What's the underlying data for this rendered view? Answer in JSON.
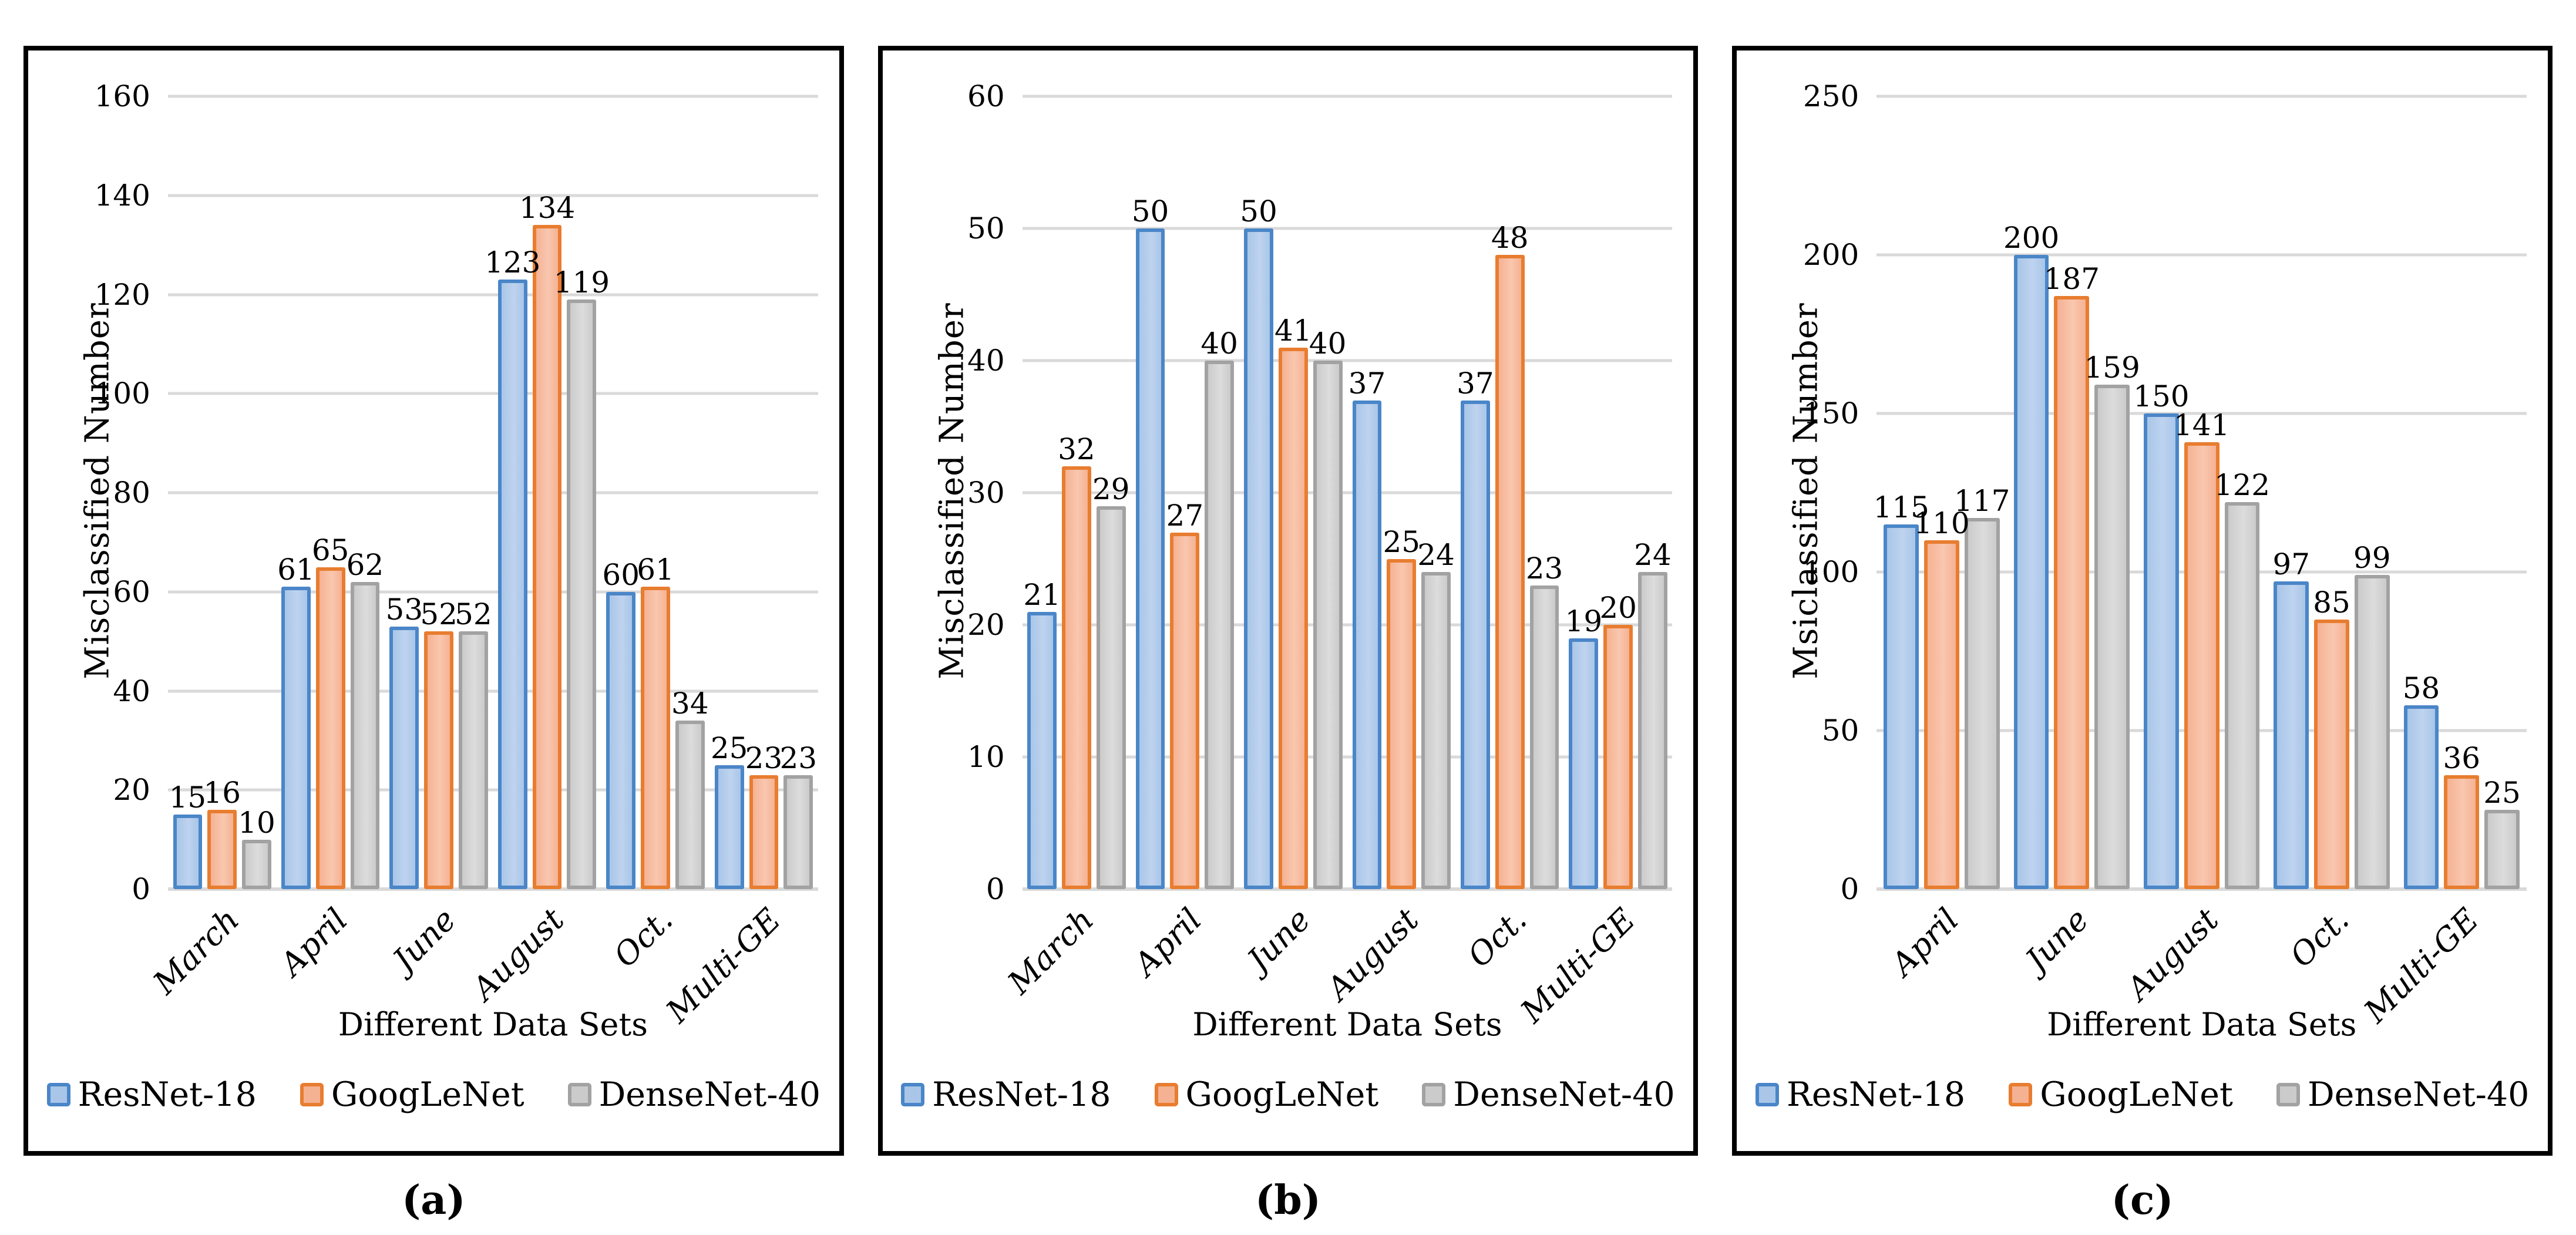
{
  "figure": {
    "x_axis_title": "Different Data Sets",
    "legend_entries": [
      "ResNet-18",
      "GoogLeNet",
      "DenseNet-40"
    ]
  },
  "palette": {
    "gridline": "#D9D9D9",
    "panel_border": "#000000",
    "series": [
      {
        "name": "ResNet-18",
        "border": "#4A86C8",
        "fill": "#A9C6E8",
        "fill2": "#BED3EF"
      },
      {
        "name": "GoogLeNet",
        "border": "#E87D30",
        "fill": "#F5B293",
        "fill2": "#F9C7AF"
      },
      {
        "name": "DenseNet-40",
        "border": "#A2A2A2",
        "fill": "#CBCBCB",
        "fill2": "#DCDCDC"
      }
    ]
  },
  "chart_data": [
    {
      "type": "bar",
      "caption": "(a)",
      "title": "",
      "ylabel": "Misclassified Number",
      "xlabel": "Different Data Sets",
      "ymax": 160,
      "ystep": 20,
      "ylim": [
        0,
        160
      ],
      "grid": "horizontal",
      "legend_position": "bottom",
      "categories": [
        "March",
        "April",
        "June",
        "August",
        "Oct.",
        "Multi-GE"
      ],
      "series": [
        {
          "name": "ResNet-18",
          "values": [
            15,
            61,
            53,
            123,
            60,
            25
          ]
        },
        {
          "name": "GoogLeNet",
          "values": [
            16,
            65,
            52,
            134,
            61,
            23
          ]
        },
        {
          "name": "DenseNet-40",
          "values": [
            10,
            62,
            52,
            119,
            34,
            23
          ]
        }
      ]
    },
    {
      "type": "bar",
      "caption": "(b)",
      "title": "",
      "ylabel": "Misclassified Number",
      "xlabel": "Different Data Sets",
      "ymax": 60,
      "ystep": 10,
      "ylim": [
        0,
        60
      ],
      "grid": "horizontal",
      "legend_position": "bottom",
      "categories": [
        "March",
        "April",
        "June",
        "August",
        "Oct.",
        "Multi-GE"
      ],
      "series": [
        {
          "name": "ResNet-18",
          "values": [
            21,
            50,
            50,
            37,
            37,
            19
          ]
        },
        {
          "name": "GoogLeNet",
          "values": [
            32,
            27,
            41,
            25,
            48,
            20
          ]
        },
        {
          "name": "DenseNet-40",
          "values": [
            29,
            40,
            40,
            24,
            23,
            24
          ]
        }
      ]
    },
    {
      "type": "bar",
      "caption": "(c)",
      "title": "",
      "ylabel": "Msiclassified Number",
      "xlabel": "Different Data Sets",
      "ymax": 250,
      "ystep": 50,
      "ylim": [
        0,
        250
      ],
      "grid": "horizontal",
      "legend_position": "bottom",
      "categories": [
        "April",
        "June",
        "August",
        "Oct.",
        "Multi-GE"
      ],
      "series": [
        {
          "name": "ResNet-18",
          "values": [
            115,
            200,
            150,
            97,
            58
          ]
        },
        {
          "name": "GoogLeNet",
          "values": [
            110,
            187,
            141,
            85,
            36
          ]
        },
        {
          "name": "DenseNet-40",
          "values": [
            117,
            159,
            122,
            99,
            25
          ]
        }
      ]
    }
  ]
}
